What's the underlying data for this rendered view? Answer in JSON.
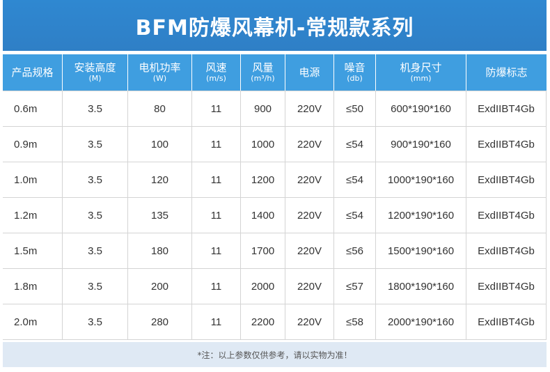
{
  "title": "BFM防爆风幕机-常规款系列",
  "columns": [
    {
      "label": "产品规格",
      "unit": ""
    },
    {
      "label": "安装高度",
      "unit": "(M)"
    },
    {
      "label": "电机功率",
      "unit": "(W)"
    },
    {
      "label": "风速",
      "unit": "(m/s)"
    },
    {
      "label": "风量",
      "unit": "(m³/h)"
    },
    {
      "label": "电源",
      "unit": ""
    },
    {
      "label": "噪音",
      "unit": "(db)"
    },
    {
      "label": "机身尺寸",
      "unit": "(mm)"
    },
    {
      "label": "防爆标志",
      "unit": ""
    }
  ],
  "rows": [
    [
      "0.6m",
      "3.5",
      "80",
      "11",
      "900",
      "220V",
      "≤50",
      "600*190*160",
      "ExdIIBT4Gb"
    ],
    [
      "0.9m",
      "3.5",
      "100",
      "11",
      "1000",
      "220V",
      "≤54",
      "900*190*160",
      "ExdIIBT4Gb"
    ],
    [
      "1.0m",
      "3.5",
      "120",
      "11",
      "1200",
      "220V",
      "≤54",
      "1000*190*160",
      "ExdIIBT4Gb"
    ],
    [
      "1.2m",
      "3.5",
      "135",
      "11",
      "1400",
      "220V",
      "≤54",
      "1200*190*160",
      "ExdIIBT4Gb"
    ],
    [
      "1.5m",
      "3.5",
      "180",
      "11",
      "1700",
      "220V",
      "≤56",
      "1500*190*160",
      "ExdIIBT4Gb"
    ],
    [
      "1.8m",
      "3.5",
      "200",
      "11",
      "2000",
      "220V",
      "≤57",
      "1800*190*160",
      "ExdIIBT4Gb"
    ],
    [
      "2.0m",
      "3.5",
      "280",
      "11",
      "2200",
      "220V",
      "≤58",
      "2000*190*160",
      "ExdIIBT4Gb"
    ]
  ],
  "note": "*注：以上参数仅供参考，请以实物为准！",
  "colors": {
    "title_bg": "#2f88d1",
    "header_bg": "#3f9ee0",
    "note_bg": "#dfe9f4"
  }
}
